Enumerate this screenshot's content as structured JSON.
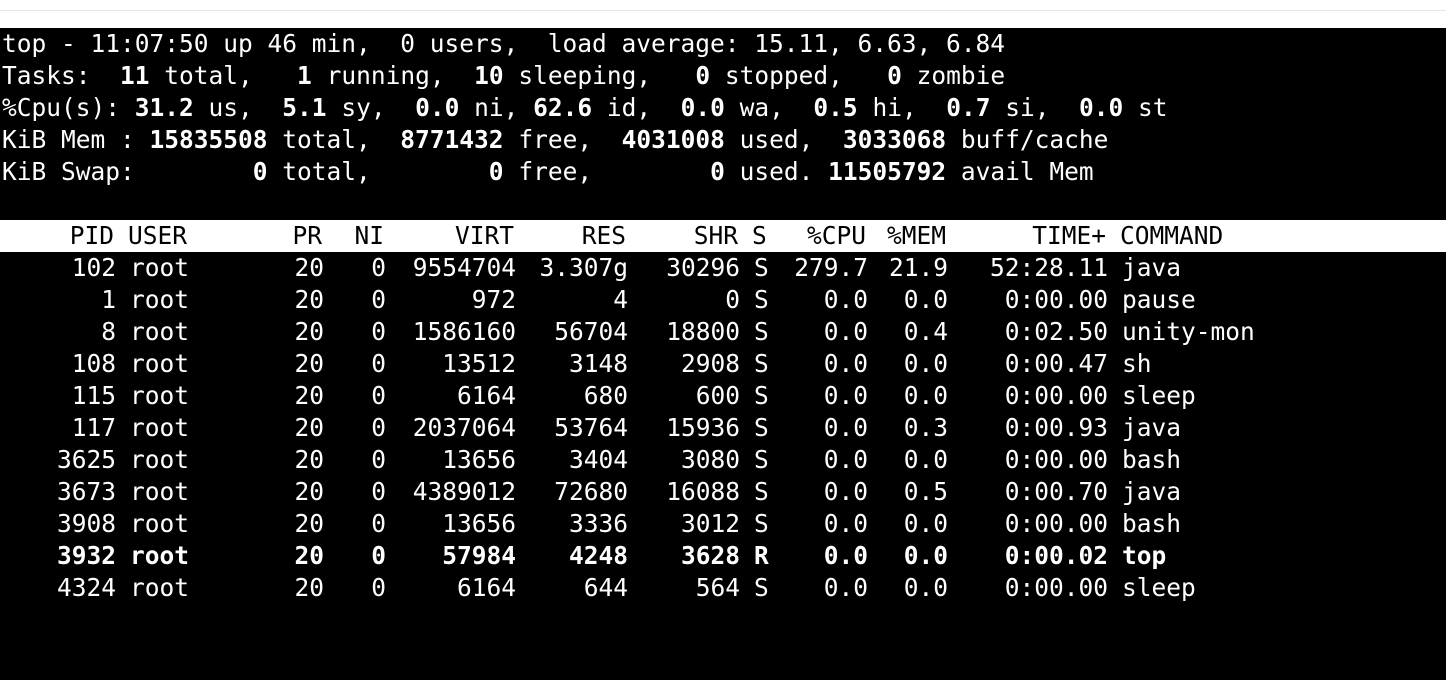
{
  "summary": {
    "line1": {
      "prefix": "top - 11:07:50 up 46 min,  0 users,  load average: 15.11, 6.63, 6.84"
    },
    "line2": {
      "label": "Tasks: ",
      "total": " 11",
      "total_label": " total,   ",
      "running": "1",
      "running_label": " running,  ",
      "sleeping": "10",
      "sleeping_label": " sleeping,   ",
      "stopped": "0",
      "stopped_label": " stopped,   ",
      "zombie": "0",
      "zombie_label": " zombie"
    },
    "line3": {
      "label": "%Cpu(s): ",
      "us": "31.2",
      "us_label": " us,  ",
      "sy": "5.1",
      "sy_label": " sy,  ",
      "ni": "0.0",
      "ni_label": " ni, ",
      "id": "62.6",
      "id_label": " id,  ",
      "wa": "0.0",
      "wa_label": " wa,  ",
      "hi": "0.5",
      "hi_label": " hi,  ",
      "si": "0.7",
      "si_label": " si,  ",
      "st": "0.0",
      "st_label": " st"
    },
    "line4": {
      "label": "KiB Mem : ",
      "total": "15835508",
      "total_label": " total,  ",
      "free": "8771432",
      "free_label": " free,  ",
      "used": "4031008",
      "used_label": " used,  ",
      "buff": "3033068",
      "buff_label": " buff/cache"
    },
    "line5": {
      "label": "KiB Swap:        ",
      "total": "0",
      "total_label": " total,        ",
      "free": "0",
      "free_label": " free,        ",
      "used": "0",
      "used_label": " used. ",
      "avail": "11505792",
      "avail_label": " avail Mem"
    }
  },
  "columns": {
    "pid": "PID",
    "user": "USER",
    "pr": "PR",
    "ni": "NI",
    "virt": "VIRT",
    "res": "RES",
    "shr": "SHR",
    "s": "S",
    "cpu": "%CPU",
    "mem": "%MEM",
    "time": "TIME+",
    "command": "COMMAND"
  },
  "processes": [
    {
      "pid": "102",
      "user": "root",
      "pr": "20",
      "ni": "0",
      "virt": "9554704",
      "res": "3.307g",
      "shr": "30296",
      "s": "S",
      "cpu": "279.7",
      "mem": "21.9",
      "time": "52:28.11",
      "command": "java"
    },
    {
      "pid": "1",
      "user": "root",
      "pr": "20",
      "ni": "0",
      "virt": "972",
      "res": "4",
      "shr": "0",
      "s": "S",
      "cpu": "0.0",
      "mem": "0.0",
      "time": "0:00.00",
      "command": "pause"
    },
    {
      "pid": "8",
      "user": "root",
      "pr": "20",
      "ni": "0",
      "virt": "1586160",
      "res": "56704",
      "shr": "18800",
      "s": "S",
      "cpu": "0.0",
      "mem": "0.4",
      "time": "0:02.50",
      "command": "unity-mon"
    },
    {
      "pid": "108",
      "user": "root",
      "pr": "20",
      "ni": "0",
      "virt": "13512",
      "res": "3148",
      "shr": "2908",
      "s": "S",
      "cpu": "0.0",
      "mem": "0.0",
      "time": "0:00.47",
      "command": "sh"
    },
    {
      "pid": "115",
      "user": "root",
      "pr": "20",
      "ni": "0",
      "virt": "6164",
      "res": "680",
      "shr": "600",
      "s": "S",
      "cpu": "0.0",
      "mem": "0.0",
      "time": "0:00.00",
      "command": "sleep"
    },
    {
      "pid": "117",
      "user": "root",
      "pr": "20",
      "ni": "0",
      "virt": "2037064",
      "res": "53764",
      "shr": "15936",
      "s": "S",
      "cpu": "0.0",
      "mem": "0.3",
      "time": "0:00.93",
      "command": "java"
    },
    {
      "pid": "3625",
      "user": "root",
      "pr": "20",
      "ni": "0",
      "virt": "13656",
      "res": "3404",
      "shr": "3080",
      "s": "S",
      "cpu": "0.0",
      "mem": "0.0",
      "time": "0:00.00",
      "command": "bash"
    },
    {
      "pid": "3673",
      "user": "root",
      "pr": "20",
      "ni": "0",
      "virt": "4389012",
      "res": "72680",
      "shr": "16088",
      "s": "S",
      "cpu": "0.0",
      "mem": "0.5",
      "time": "0:00.70",
      "command": "java"
    },
    {
      "pid": "3908",
      "user": "root",
      "pr": "20",
      "ni": "0",
      "virt": "13656",
      "res": "3336",
      "shr": "3012",
      "s": "S",
      "cpu": "0.0",
      "mem": "0.0",
      "time": "0:00.00",
      "command": "bash"
    },
    {
      "pid": "3932",
      "user": "root",
      "pr": "20",
      "ni": "0",
      "virt": "57984",
      "res": "4248",
      "shr": "3628",
      "s": "R",
      "cpu": "0.0",
      "mem": "0.0",
      "time": "0:00.02",
      "command": "top",
      "bold": true
    },
    {
      "pid": "4324",
      "user": "root",
      "pr": "20",
      "ni": "0",
      "virt": "6164",
      "res": "644",
      "shr": "564",
      "s": "S",
      "cpu": "0.0",
      "mem": "0.0",
      "time": "0:00.00",
      "command": "sleep"
    }
  ],
  "colors": {
    "terminal_bg": "#000000",
    "terminal_fg": "#ffffff",
    "header_bg": "#ffffff",
    "header_fg": "#000000"
  }
}
